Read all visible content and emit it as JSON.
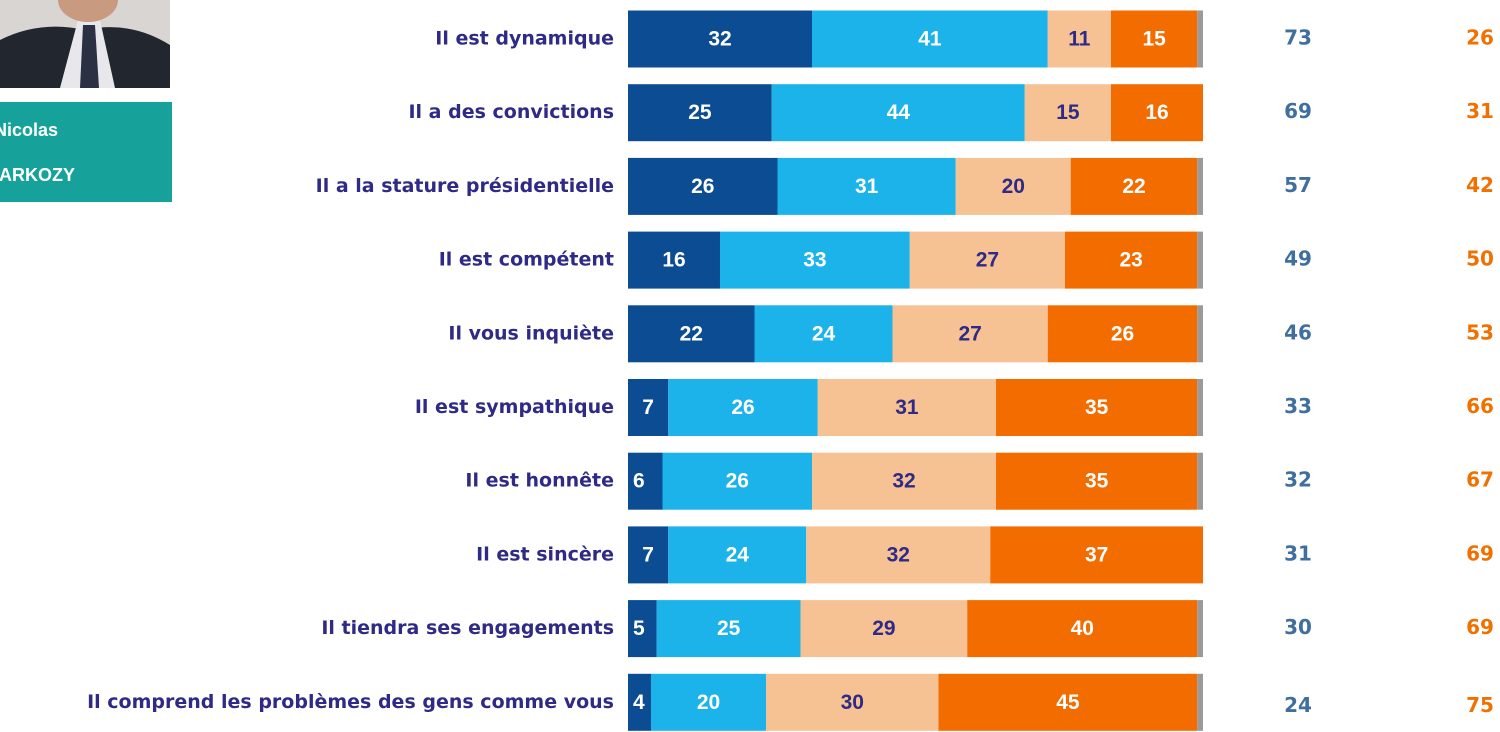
{
  "chart_data": {
    "type": "stacked_bar_horizontal",
    "person": {
      "first_name": "Nicolas",
      "last_name": "SARKOZY"
    },
    "categories": [
      "Il est dynamique",
      "Il a des convictions",
      "Il a la stature présidentielle",
      "Il est compétent",
      "Il vous inquiète",
      "Il est sympathique",
      "Il est honnête",
      "Il est sincère",
      "Il tiendra ses engagements",
      "Il comprend les problèmes des gens comme vous"
    ],
    "xlim": [
      0,
      100
    ],
    "series": [
      {
        "color": "#0b4c93",
        "label_color": "#ffffff",
        "values": [
          32,
          25,
          26,
          16,
          22,
          7,
          6,
          7,
          5,
          4
        ]
      },
      {
        "color": "#1cb2ea",
        "label_color": "#ffffff",
        "values": [
          41,
          44,
          31,
          33,
          24,
          26,
          26,
          24,
          25,
          20
        ]
      },
      {
        "color": "#f7c293",
        "label_color": "#2e2a86",
        "values": [
          11,
          15,
          20,
          27,
          27,
          31,
          32,
          32,
          29,
          30
        ]
      },
      {
        "color": "#f26c00",
        "label_color": "#ffffff",
        "values": [
          15,
          16,
          22,
          23,
          26,
          35,
          35,
          37,
          40,
          45
        ]
      },
      {
        "color": "#9a9a9a",
        "label_color": "#ffffff",
        "values": [
          1,
          null,
          1,
          1,
          1,
          1,
          1,
          null,
          1,
          1
        ]
      }
    ],
    "totals": [
      {
        "color": "#3f6f9f",
        "values": [
          73,
          69,
          57,
          49,
          46,
          33,
          32,
          31,
          30,
          24
        ]
      },
      {
        "color": "#f07000",
        "values": [
          26,
          31,
          42,
          50,
          53,
          66,
          67,
          69,
          69,
          75
        ]
      }
    ]
  }
}
